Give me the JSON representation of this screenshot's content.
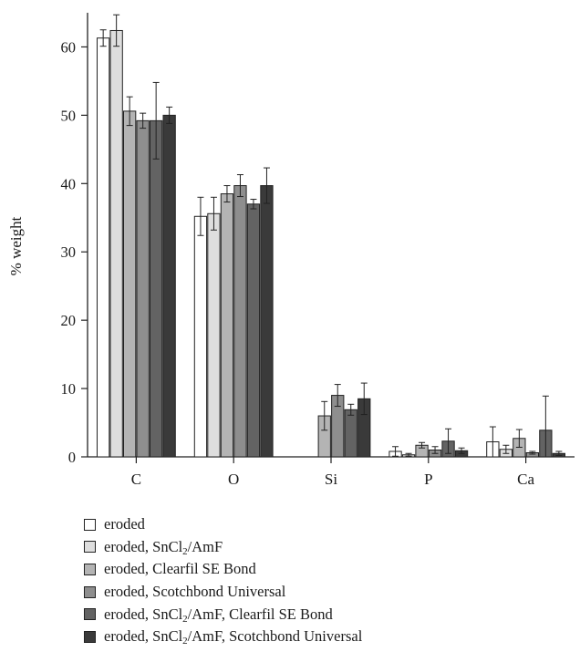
{
  "chart_data": {
    "type": "bar",
    "ylabel": "% weight",
    "ylim": [
      0,
      65
    ],
    "yticks": [
      0,
      10,
      20,
      30,
      40,
      50,
      60
    ],
    "categories": [
      "C",
      "O",
      "Si",
      "P",
      "Ca"
    ],
    "legend_position": "bottom",
    "series": [
      {
        "name": "eroded",
        "color": "#ffffff",
        "values": [
          61.3,
          35.2,
          null,
          0.8,
          2.2
        ],
        "errors": [
          1.2,
          2.8,
          null,
          0.7,
          2.2
        ]
      },
      {
        "name": "eroded, SnCl2/AmF",
        "name_parts": [
          "eroded, SnCl",
          "2",
          "/AmF"
        ],
        "color": "#dedede",
        "values": [
          62.4,
          35.6,
          null,
          0.3,
          1.1
        ],
        "errors": [
          2.3,
          2.4,
          null,
          0.2,
          0.6
        ]
      },
      {
        "name": "eroded, Clearfil SE Bond",
        "name_parts": [
          "eroded, Clearfil SE Bond",
          "",
          ""
        ],
        "color": "#b4b4b4",
        "values": [
          50.6,
          38.5,
          6.0,
          1.7,
          2.7
        ],
        "errors": [
          2.1,
          1.2,
          2.1,
          0.4,
          1.3
        ]
      },
      {
        "name": "eroded, Scotchbond Universal",
        "name_parts": [
          "eroded, Scotchbond Universal",
          "",
          ""
        ],
        "color": "#8e8e8e",
        "values": [
          49.2,
          39.7,
          9.0,
          1.0,
          0.6
        ],
        "errors": [
          1.1,
          1.6,
          1.6,
          0.5,
          0.2
        ]
      },
      {
        "name": "eroded, SnCl2/AmF, Clearfil SE Bond",
        "name_parts": [
          "eroded, SnCl",
          "2",
          "/AmF, Clearfil SE Bond"
        ],
        "color": "#636363",
        "values": [
          49.2,
          37.0,
          6.9,
          2.3,
          3.9
        ],
        "errors": [
          5.6,
          0.7,
          0.8,
          1.8,
          5.0
        ]
      },
      {
        "name": "eroded, SnCl2/AmF, Scotchbond Universal",
        "name_parts": [
          "eroded, SnCl",
          "2",
          "/AmF, Scotchbond Universal"
        ],
        "color": "#3a3a3a",
        "values": [
          50.0,
          39.7,
          8.5,
          0.9,
          0.5
        ],
        "errors": [
          1.2,
          2.6,
          2.3,
          0.4,
          0.3
        ]
      }
    ]
  }
}
